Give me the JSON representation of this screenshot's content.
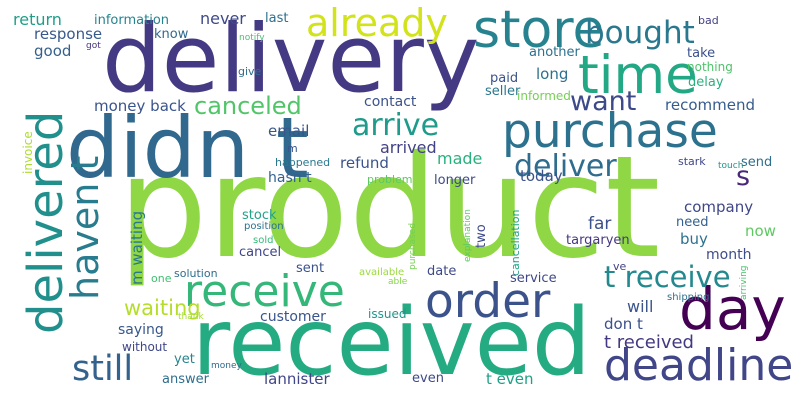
{
  "words": [
    {
      "text": "product",
      "color": "#8fd744"
    },
    {
      "text": "delivery",
      "color": "#443a83"
    },
    {
      "text": "received",
      "color": "#25ab82"
    },
    {
      "text": "didn t",
      "color": "#31688e"
    },
    {
      "text": "purchase",
      "color": "#2c728e"
    },
    {
      "text": "delivered",
      "color": "#21908d"
    },
    {
      "text": "day",
      "color": "#440154"
    },
    {
      "text": "order",
      "color": "#3b528b"
    },
    {
      "text": "store",
      "color": "#26828e"
    },
    {
      "text": "time",
      "color": "#22a884"
    },
    {
      "text": "deadline",
      "color": "#404688"
    },
    {
      "text": "receive",
      "color": "#35b779"
    },
    {
      "text": "already",
      "color": "#d2e21b"
    },
    {
      "text": "haven t",
      "color": "#287c8e"
    },
    {
      "text": "bought",
      "color": "#2a788e"
    },
    {
      "text": "still",
      "color": "#33638d"
    },
    {
      "text": "arrive",
      "color": "#1e9b8a"
    },
    {
      "text": "deliver",
      "color": "#2f6c8e"
    },
    {
      "text": "t receive",
      "color": "#23898e"
    },
    {
      "text": "canceled",
      "color": "#52c569"
    },
    {
      "text": "want",
      "color": "#3e4989"
    },
    {
      "text": "s",
      "color": "#482878"
    },
    {
      "text": "waiting",
      "color": "#b5de2b"
    },
    {
      "text": "t received",
      "color": "#453882"
    },
    {
      "text": "money back",
      "color": "#3a548c"
    },
    {
      "text": "company",
      "color": "#3f4788"
    },
    {
      "text": "recommend",
      "color": "#365c8d"
    },
    {
      "text": "return",
      "color": "#1f9e89"
    },
    {
      "text": "information",
      "color": "#25838e"
    },
    {
      "text": "never",
      "color": "#3e4a89"
    },
    {
      "text": "last",
      "color": "#2e6f8e"
    },
    {
      "text": "response",
      "color": "#38598c"
    },
    {
      "text": "know",
      "color": "#31688e"
    },
    {
      "text": "good",
      "color": "#355f8d"
    },
    {
      "text": "got",
      "color": "#46327e"
    },
    {
      "text": "notify",
      "color": "#4ac16d"
    },
    {
      "text": "bad",
      "color": "#424086"
    },
    {
      "text": "another",
      "color": "#2d718e"
    },
    {
      "text": "take",
      "color": "#3b518b"
    },
    {
      "text": "nothing",
      "color": "#4ec36b"
    },
    {
      "text": "delay",
      "color": "#2ab07f"
    },
    {
      "text": "give",
      "color": "#2e6e8e"
    },
    {
      "text": "paid",
      "color": "#3a538b"
    },
    {
      "text": "long",
      "color": "#2d708e"
    },
    {
      "text": "seller",
      "color": "#2a768e"
    },
    {
      "text": "informed",
      "color": "#75d054"
    },
    {
      "text": "contact",
      "color": "#3b528b"
    },
    {
      "text": "invoice",
      "color": "#addc30"
    },
    {
      "text": "email",
      "color": "#39568c"
    },
    {
      "text": "m",
      "color": "#39558c"
    },
    {
      "text": "arrived",
      "color": "#424186"
    },
    {
      "text": "refund",
      "color": "#3a538b"
    },
    {
      "text": "made",
      "color": "#2ab07f"
    },
    {
      "text": "happened",
      "color": "#2a788e"
    },
    {
      "text": "hasn t",
      "color": "#34618d"
    },
    {
      "text": "problem",
      "color": "#5ec962"
    },
    {
      "text": "longer",
      "color": "#3e4989"
    },
    {
      "text": "today",
      "color": "#3b528b"
    },
    {
      "text": "stark",
      "color": "#3f4889"
    },
    {
      "text": "touch",
      "color": "#1f968b"
    },
    {
      "text": "send",
      "color": "#2e6e8e"
    },
    {
      "text": "stock",
      "color": "#20a386"
    },
    {
      "text": "position",
      "color": "#2c728e"
    },
    {
      "text": "m waiting",
      "color": "#2a788e"
    },
    {
      "text": "sold",
      "color": "#37b878"
    },
    {
      "text": "cancel",
      "color": "#404688"
    },
    {
      "text": "two",
      "color": "#3e4a89"
    },
    {
      "text": "explanation",
      "color": "#5ec962"
    },
    {
      "text": "purchased",
      "color": "#75d054"
    },
    {
      "text": "cancellation",
      "color": "#1f9f88"
    },
    {
      "text": "far",
      "color": "#3b518b"
    },
    {
      "text": "targaryen",
      "color": "#453781"
    },
    {
      "text": "need",
      "color": "#35608d"
    },
    {
      "text": "buy",
      "color": "#2d718e"
    },
    {
      "text": "now",
      "color": "#5ec962"
    },
    {
      "text": "month",
      "color": "#3e4c8a"
    },
    {
      "text": "ve",
      "color": "#424186"
    },
    {
      "text": "sent",
      "color": "#3b518b"
    },
    {
      "text": "date",
      "color": "#3e4a89"
    },
    {
      "text": "available",
      "color": "#9bd93c"
    },
    {
      "text": "service",
      "color": "#3f4788"
    },
    {
      "text": "one",
      "color": "#42be71"
    },
    {
      "text": "solution",
      "color": "#2e6e8e"
    },
    {
      "text": "able",
      "color": "#86d549"
    },
    {
      "text": "shipping",
      "color": "#2d718e"
    },
    {
      "text": "arriving",
      "color": "#48c16e"
    },
    {
      "text": "will",
      "color": "#3a548c"
    },
    {
      "text": "thank",
      "color": "#a5db36"
    },
    {
      "text": "customer",
      "color": "#3a548c"
    },
    {
      "text": "issued",
      "color": "#1f958b"
    },
    {
      "text": "don t",
      "color": "#3b518b"
    },
    {
      "text": "saying",
      "color": "#38588c"
    },
    {
      "text": "without",
      "color": "#3f4788"
    },
    {
      "text": "yet",
      "color": "#25858e"
    },
    {
      "text": "money",
      "color": "#2f6b8e"
    },
    {
      "text": "lannister",
      "color": "#404688"
    },
    {
      "text": "answer",
      "color": "#2e6e8e"
    },
    {
      "text": "even",
      "color": "#3e4989"
    },
    {
      "text": "t even",
      "color": "#1fa088"
    }
  ]
}
